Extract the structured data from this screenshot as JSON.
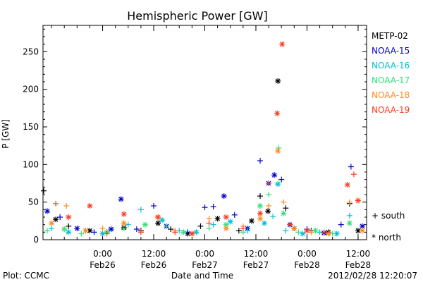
{
  "chart_data": {
    "type": "scatter",
    "title": "Hemispheric Power [GW]",
    "ylabel": "P [GW]",
    "xlabel": "Date and Time",
    "ylim": [
      0,
      285
    ],
    "xlim": [
      "2012-02-25T10:00",
      "2012-02-28T14:00"
    ],
    "y_ticks": [
      0,
      50,
      100,
      150,
      200,
      250
    ],
    "x_ticks": [
      {
        "t": "2012-02-26T00:00",
        "label_time": "0:00",
        "label_date": "Feb26"
      },
      {
        "t": "2012-02-26T12:00",
        "label_time": "12:00",
        "label_date": "Feb26"
      },
      {
        "t": "2012-02-27T00:00",
        "label_time": "0:00",
        "label_date": "Feb27"
      },
      {
        "t": "2012-02-27T12:00",
        "label_time": "12:00",
        "label_date": "Feb27"
      },
      {
        "t": "2012-02-28T00:00",
        "label_time": "0:00",
        "label_date": "Feb28"
      },
      {
        "t": "2012-02-28T12:00",
        "label_time": "12:00",
        "label_date": "Feb28"
      }
    ],
    "hemisphere_legend": [
      {
        "marker": "+",
        "label": "south"
      },
      {
        "marker": "*",
        "label": "north"
      }
    ],
    "series": [
      {
        "name": "METP-02",
        "color": "#000000",
        "points": [
          [
            "2012-02-25T10:10",
            65,
            "s"
          ],
          [
            "2012-02-25T13:00",
            27,
            "n"
          ],
          [
            "2012-02-25T16:00",
            18,
            "s"
          ],
          [
            "2012-02-25T21:00",
            12,
            "n"
          ],
          [
            "2012-02-26T01:00",
            10,
            "s"
          ],
          [
            "2012-02-26T05:00",
            16,
            "n"
          ],
          [
            "2012-02-26T09:00",
            12,
            "s"
          ],
          [
            "2012-02-26T13:00",
            22,
            "n"
          ],
          [
            "2012-02-26T16:00",
            14,
            "s"
          ],
          [
            "2012-02-26T20:00",
            8,
            "n"
          ],
          [
            "2012-02-26T23:00",
            18,
            "s"
          ],
          [
            "2012-02-27T03:00",
            28,
            "n"
          ],
          [
            "2012-02-27T08:00",
            12,
            "s"
          ],
          [
            "2012-02-27T11:00",
            25,
            "n"
          ],
          [
            "2012-02-27T13:00",
            58,
            "s"
          ],
          [
            "2012-02-27T14:50",
            38,
            "n"
          ],
          [
            "2012-02-27T17:10",
            211,
            "n"
          ],
          [
            "2012-02-27T19:00",
            42,
            "s"
          ],
          [
            "2012-02-27T21:00",
            15,
            "n"
          ],
          [
            "2012-02-28T01:00",
            12,
            "s"
          ],
          [
            "2012-02-28T05:00",
            10,
            "n"
          ],
          [
            "2012-02-28T10:00",
            48,
            "s"
          ],
          [
            "2012-02-28T12:00",
            12,
            "n"
          ]
        ]
      },
      {
        "name": "NOAA-15",
        "color": "#0000cd",
        "points": [
          [
            "2012-02-25T11:00",
            38,
            "n"
          ],
          [
            "2012-02-25T14:00",
            30,
            "s"
          ],
          [
            "2012-02-25T18:00",
            15,
            "n"
          ],
          [
            "2012-02-25T22:00",
            10,
            "s"
          ],
          [
            "2012-02-26T02:00",
            14,
            "n"
          ],
          [
            "2012-02-26T04:20",
            54,
            "n"
          ],
          [
            "2012-02-26T08:00",
            14,
            "s"
          ],
          [
            "2012-02-26T12:00",
            45,
            "s"
          ],
          [
            "2012-02-26T15:00",
            18,
            "n"
          ],
          [
            "2012-02-26T20:00",
            10,
            "s"
          ],
          [
            "2012-02-27T00:00",
            43,
            "s"
          ],
          [
            "2012-02-27T02:00",
            44,
            "s"
          ],
          [
            "2012-02-27T04:30",
            58,
            "n"
          ],
          [
            "2012-02-27T07:00",
            33,
            "s"
          ],
          [
            "2012-02-27T10:00",
            15,
            "n"
          ],
          [
            "2012-02-27T13:00",
            105,
            "s"
          ],
          [
            "2012-02-27T15:00",
            75,
            "n"
          ],
          [
            "2012-02-27T16:20",
            86,
            "n"
          ],
          [
            "2012-02-27T18:00",
            80,
            "s"
          ],
          [
            "2012-02-27T20:00",
            20,
            "n"
          ],
          [
            "2012-02-28T00:00",
            14,
            "s"
          ],
          [
            "2012-02-28T04:00",
            9,
            "n"
          ],
          [
            "2012-02-28T08:00",
            20,
            "s"
          ],
          [
            "2012-02-28T10:20",
            97,
            "s"
          ],
          [
            "2012-02-28T13:00",
            18,
            "n"
          ]
        ]
      },
      {
        "name": "NOAA-16",
        "color": "#00bfd8",
        "points": [
          [
            "2012-02-25T12:00",
            15,
            "s"
          ],
          [
            "2012-02-25T16:00",
            10,
            "n"
          ],
          [
            "2012-02-25T20:00",
            12,
            "s"
          ],
          [
            "2012-02-26T00:00",
            8,
            "n"
          ],
          [
            "2012-02-26T06:00",
            20,
            "s"
          ],
          [
            "2012-02-26T09:00",
            40,
            "s"
          ],
          [
            "2012-02-26T14:00",
            26,
            "n"
          ],
          [
            "2012-02-26T18:00",
            12,
            "s"
          ],
          [
            "2012-02-26T22:00",
            10,
            "n"
          ],
          [
            "2012-02-27T02:00",
            20,
            "s"
          ],
          [
            "2012-02-27T06:00",
            24,
            "n"
          ],
          [
            "2012-02-27T10:00",
            12,
            "s"
          ],
          [
            "2012-02-27T14:00",
            22,
            "n"
          ],
          [
            "2012-02-27T16:00",
            31,
            "s"
          ],
          [
            "2012-02-27T17:10",
            74,
            "n"
          ],
          [
            "2012-02-27T19:00",
            12,
            "s"
          ],
          [
            "2012-02-27T23:00",
            8,
            "n"
          ],
          [
            "2012-02-28T03:00",
            10,
            "s"
          ],
          [
            "2012-02-28T07:00",
            8,
            "n"
          ],
          [
            "2012-02-28T10:00",
            32,
            "s"
          ]
        ]
      },
      {
        "name": "NOAA-17",
        "color": "#33e07a",
        "points": [
          [
            "2012-02-25T11:00",
            12,
            "s"
          ],
          [
            "2012-02-25T15:00",
            14,
            "n"
          ],
          [
            "2012-02-25T19:00",
            8,
            "s"
          ],
          [
            "2012-02-26T01:00",
            10,
            "n"
          ],
          [
            "2012-02-26T05:00",
            15,
            "s"
          ],
          [
            "2012-02-26T10:00",
            20,
            "n"
          ],
          [
            "2012-02-26T15:00",
            18,
            "s"
          ],
          [
            "2012-02-26T19:00",
            10,
            "n"
          ],
          [
            "2012-02-27T01:00",
            15,
            "s"
          ],
          [
            "2012-02-27T05:00",
            20,
            "n"
          ],
          [
            "2012-02-27T09:00",
            10,
            "s"
          ],
          [
            "2012-02-27T13:00",
            45,
            "n"
          ],
          [
            "2012-02-27T15:00",
            60,
            "s"
          ],
          [
            "2012-02-27T17:20",
            122,
            "s"
          ],
          [
            "2012-02-27T18:30",
            35,
            "n"
          ],
          [
            "2012-02-27T22:00",
            10,
            "s"
          ],
          [
            "2012-02-28T02:00",
            12,
            "n"
          ],
          [
            "2012-02-28T06:00",
            8,
            "s"
          ],
          [
            "2012-02-28T10:00",
            22,
            "n"
          ]
        ]
      },
      {
        "name": "NOAA-18",
        "color": "#ff8c1a",
        "points": [
          [
            "2012-02-25T12:00",
            22,
            "n"
          ],
          [
            "2012-02-25T15:30",
            45,
            "s"
          ],
          [
            "2012-02-25T20:00",
            12,
            "n"
          ],
          [
            "2012-02-26T00:00",
            15,
            "s"
          ],
          [
            "2012-02-26T05:00",
            22,
            "n"
          ],
          [
            "2012-02-26T09:00",
            10,
            "s"
          ],
          [
            "2012-02-26T13:00",
            30,
            "n"
          ],
          [
            "2012-02-26T17:00",
            12,
            "s"
          ],
          [
            "2012-02-26T21:00",
            8,
            "n"
          ],
          [
            "2012-02-27T01:00",
            28,
            "s"
          ],
          [
            "2012-02-27T05:00",
            15,
            "n"
          ],
          [
            "2012-02-27T09:00",
            18,
            "s"
          ],
          [
            "2012-02-27T13:00",
            28,
            "n"
          ],
          [
            "2012-02-27T15:00",
            45,
            "s"
          ],
          [
            "2012-02-27T17:10",
            118,
            "n"
          ],
          [
            "2012-02-27T18:30",
            50,
            "s"
          ],
          [
            "2012-02-27T21:00",
            15,
            "n"
          ],
          [
            "2012-02-28T01:00",
            10,
            "s"
          ],
          [
            "2012-02-28T05:00",
            8,
            "n"
          ],
          [
            "2012-02-28T10:00",
            50,
            "s"
          ],
          [
            "2012-02-28T13:00",
            12,
            "n"
          ]
        ]
      },
      {
        "name": "NOAA-19",
        "color": "#ff3b1f",
        "points": [
          [
            "2012-02-25T13:00",
            48,
            "s"
          ],
          [
            "2012-02-25T16:00",
            30,
            "n"
          ],
          [
            "2012-02-25T21:00",
            45,
            "n"
          ],
          [
            "2012-02-26T01:00",
            8,
            "s"
          ],
          [
            "2012-02-26T05:00",
            34,
            "n"
          ],
          [
            "2012-02-26T09:00",
            10,
            "s"
          ],
          [
            "2012-02-26T13:00",
            30,
            "n"
          ],
          [
            "2012-02-26T17:00",
            10,
            "s"
          ],
          [
            "2012-02-26T21:00",
            8,
            "n"
          ],
          [
            "2012-02-27T01:00",
            22,
            "s"
          ],
          [
            "2012-02-27T05:00",
            30,
            "n"
          ],
          [
            "2012-02-27T09:00",
            15,
            "s"
          ],
          [
            "2012-02-27T13:00",
            35,
            "n"
          ],
          [
            "2012-02-27T15:00",
            75,
            "s"
          ],
          [
            "2012-02-27T17:00",
            168,
            "n"
          ],
          [
            "2012-02-27T18:10",
            260,
            "n"
          ],
          [
            "2012-02-27T20:00",
            20,
            "s"
          ],
          [
            "2012-02-28T00:00",
            12,
            "n"
          ],
          [
            "2012-02-28T04:00",
            10,
            "s"
          ],
          [
            "2012-02-28T09:30",
            73,
            "n"
          ],
          [
            "2012-02-28T11:00",
            87,
            "s"
          ],
          [
            "2012-02-28T12:00",
            52,
            "n"
          ]
        ]
      }
    ]
  },
  "footer": {
    "plot_credit": "Plot: CCMC",
    "timestamp": "2012/02/28 12:20:07"
  }
}
